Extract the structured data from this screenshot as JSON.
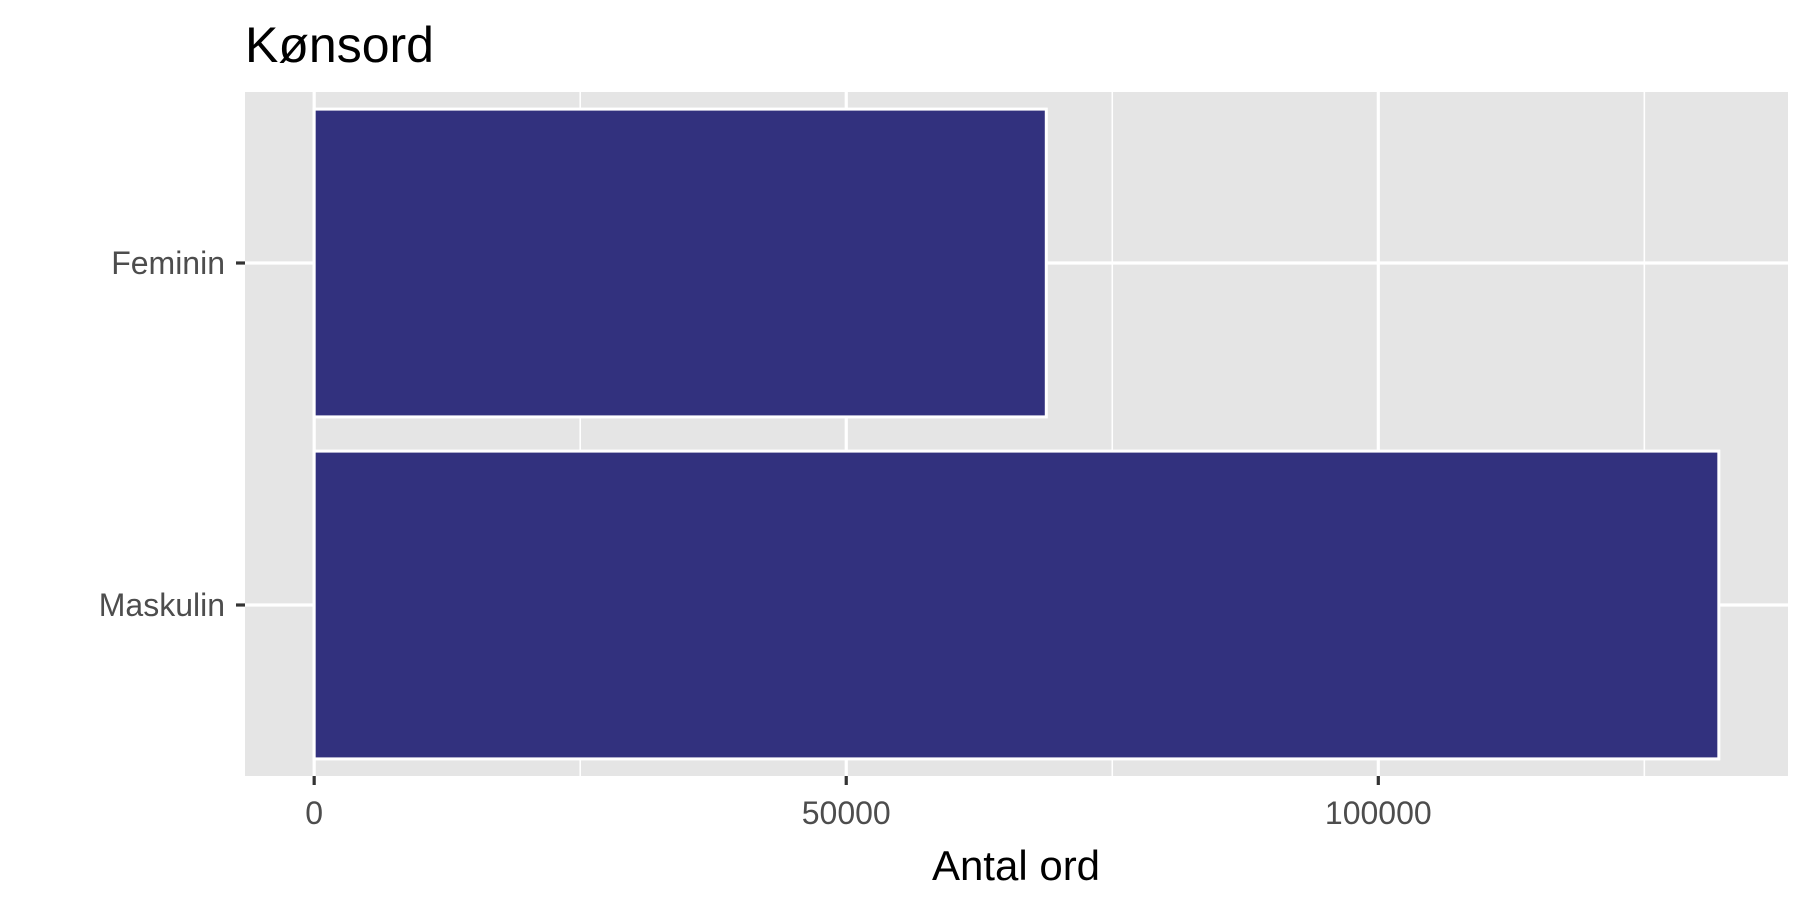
{
  "chart_data": {
    "type": "bar",
    "orientation": "horizontal",
    "title": "Kønsord",
    "xlabel": "Antal ord",
    "ylabel": "",
    "categories": [
      "Feminin",
      "Maskulin"
    ],
    "values": [
      68800,
      132000
    ],
    "xlim": [
      -6500,
      138500
    ],
    "x_ticks": [
      0,
      50000,
      100000
    ],
    "x_minor_ticks": [
      25000,
      75000,
      125000
    ],
    "grid": true,
    "legend": "none",
    "colors": {
      "bar_fill": "#2b2a7a",
      "bar_stroke": "#ffffff",
      "panel_background": "#e5e5e5",
      "grid": "#ffffff",
      "tick_label": "#4d4d4d",
      "axis_tick": "#333333"
    }
  }
}
